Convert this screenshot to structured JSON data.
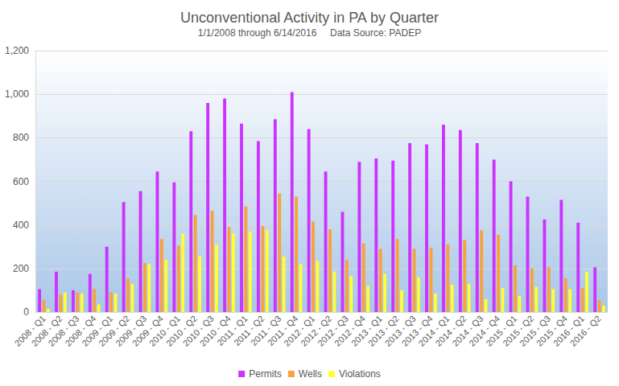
{
  "chart_data": {
    "type": "bar",
    "title": "Unconventional Activity in PA by Quarter",
    "subtitle": "1/1/2008 through 6/14/2016     Data Source: PADEP",
    "categories": [
      "2008 - Q1",
      "2008 - Q2",
      "2008 - Q3",
      "2008 - Q4",
      "2009 - Q1",
      "2009 - Q2",
      "2009 - Q3",
      "2009 - Q4",
      "2010 - Q1",
      "2010 - Q2",
      "2010 - Q3",
      "2010 - Q4",
      "2011 - Q1",
      "2011 - Q2",
      "2011 - Q3",
      "2011 - Q4",
      "2012 - Q1",
      "2012 - Q2",
      "2012 - Q3",
      "2012 - Q4",
      "2013 - Q1",
      "2013 - Q2",
      "2013 - Q3",
      "2013 - Q4",
      "2014 - Q1",
      "2014 - Q2",
      "2014 - Q3",
      "2014 - Q4",
      "2015 - Q1",
      "2015 - Q2",
      "2015 - Q3",
      "2015 - Q4",
      "2016 - Q1",
      "2016 - Q2"
    ],
    "series": [
      {
        "name": "Permits",
        "color": "#cc33ff",
        "values": [
          105,
          185,
          100,
          175,
          300,
          505,
          555,
          645,
          595,
          830,
          960,
          980,
          865,
          785,
          885,
          1010,
          840,
          645,
          460,
          690,
          705,
          695,
          775,
          770,
          860,
          835,
          775,
          700,
          600,
          530,
          425,
          515,
          410,
          205
        ]
      },
      {
        "name": "Wells",
        "color": "#f7a23b",
        "values": [
          55,
          80,
          90,
          105,
          90,
          155,
          225,
          335,
          305,
          445,
          465,
          390,
          485,
          395,
          545,
          530,
          415,
          380,
          240,
          315,
          290,
          335,
          290,
          295,
          310,
          330,
          375,
          355,
          215,
          200,
          205,
          155,
          110,
          55
        ]
      },
      {
        "name": "Violations",
        "color": "#ffff33",
        "values": [
          15,
          90,
          85,
          35,
          85,
          130,
          220,
          240,
          360,
          255,
          310,
          360,
          370,
          375,
          255,
          220,
          235,
          185,
          165,
          120,
          175,
          100,
          160,
          85,
          125,
          130,
          60,
          110,
          75,
          115,
          105,
          105,
          185,
          30
        ]
      }
    ],
    "ylim": [
      0,
      1200
    ],
    "yticks": [
      0,
      200,
      400,
      600,
      800,
      1000,
      1200
    ],
    "grid": true,
    "legend": "bottom"
  }
}
